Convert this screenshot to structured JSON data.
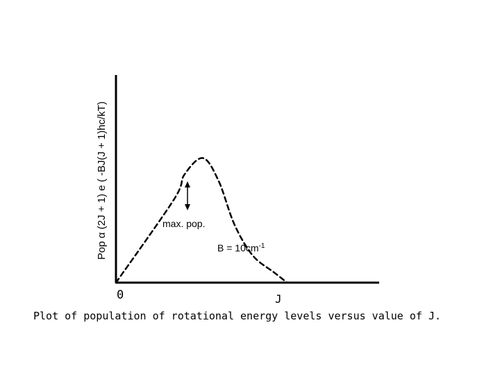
{
  "chart_data": {
    "type": "line",
    "title": "",
    "caption": "Plot of population of rotational energy levels versus value of J.",
    "ylabel": "Pop α (2J + 1) e ( -BJ(J + 1)hc/kT)",
    "xlabel": "J",
    "x_origin_label": "0",
    "grid": false,
    "series": [
      {
        "style": "dashed",
        "color": "#000000",
        "points": [
          [
            0.0,
            0.0
          ],
          [
            0.22,
            0.4
          ],
          [
            0.26,
            0.52
          ],
          [
            0.33,
            0.6
          ],
          [
            0.39,
            0.49
          ],
          [
            0.45,
            0.28
          ],
          [
            0.52,
            0.13
          ],
          [
            0.6,
            0.05
          ],
          [
            0.65,
            0.0
          ]
        ]
      }
    ],
    "xlim": [
      0,
      1
    ],
    "ylim": [
      0,
      1
    ],
    "annotations": [
      {
        "id": "max",
        "text": "max. pop."
      },
      {
        "id": "b",
        "text": "B = 10cm",
        "superscript": "-1"
      }
    ]
  }
}
